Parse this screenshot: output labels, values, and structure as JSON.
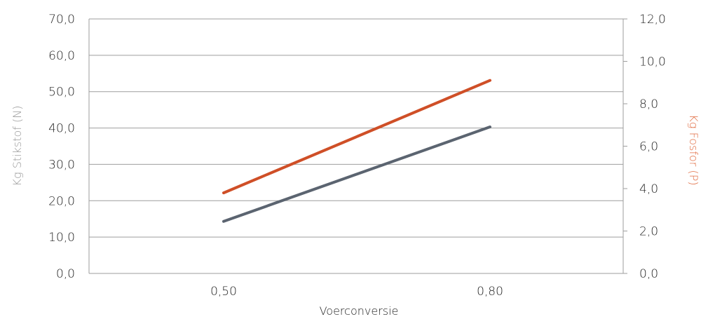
{
  "chart_data": {
    "type": "line",
    "categories": [
      "0,50",
      "0,80"
    ],
    "x": [
      0.5,
      0.8
    ],
    "xlabel": "Voerconversie",
    "y_left": {
      "label": "Kg Stikstof (N)",
      "range": [
        0,
        70
      ],
      "ticks": [
        "0,0",
        "10,0",
        "20,0",
        "30,0",
        "40,0",
        "50,0",
        "60,0",
        "70,0"
      ]
    },
    "y_right": {
      "label": "Kg Fosfor (P)",
      "range": [
        0,
        12
      ],
      "ticks": [
        "0,0",
        "2,0",
        "4,0",
        "6,0",
        "8,0",
        "10,0",
        "12,0"
      ]
    },
    "series": [
      {
        "axis": "left",
        "values": [
          14.3,
          40.3
        ],
        "color": "#5b6470"
      },
      {
        "axis": "right",
        "values": [
          3.8,
          9.1
        ],
        "color": "#cf4f27"
      }
    ],
    "grid": true,
    "legend": "none",
    "colors": {
      "left_axis_label": "#9a9a9a",
      "right_axis_label": "#e06a3f",
      "gridline": "#9e9e9e"
    }
  }
}
